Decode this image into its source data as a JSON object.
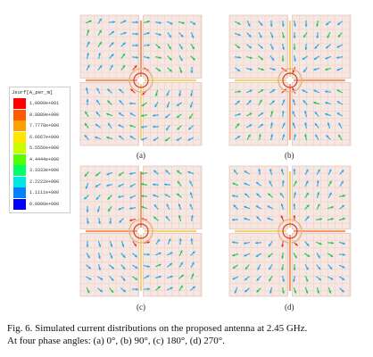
{
  "legend": {
    "title": "Jsurf[A_per_m]",
    "entries": [
      {
        "label": "1.0000e+001",
        "color": "#ff0000"
      },
      {
        "label": "8.8889e+000",
        "color": "#ff5a00"
      },
      {
        "label": "7.7778e+000",
        "color": "#ffa000"
      },
      {
        "label": "6.6667e+000",
        "color": "#ffe600"
      },
      {
        "label": "5.5556e+000",
        "color": "#c8ff00"
      },
      {
        "label": "4.4444e+000",
        "color": "#50ff00"
      },
      {
        "label": "3.3333e+000",
        "color": "#00ff64"
      },
      {
        "label": "2.2222e+000",
        "color": "#00e6e6"
      },
      {
        "label": "1.1111e+000",
        "color": "#0082ff"
      },
      {
        "label": "0.0000e+000",
        "color": "#0000ff"
      }
    ]
  },
  "panels": [
    {
      "label": "(a)",
      "phase": 0
    },
    {
      "label": "(b)",
      "phase": 90
    },
    {
      "label": "(c)",
      "phase": 180
    },
    {
      "label": "(d)",
      "phase": 270
    }
  ],
  "caption": {
    "line1": "Fig. 6.   Simulated current distributions on the proposed antenna at 2.45 GHz.",
    "line2": "At four phase angles: (a) 0°, (b) 90°, (c) 180°, (d) 270°."
  },
  "colors": {
    "patch_fill": "#f6e7e2",
    "grid": "#efc9c0",
    "ring": "#e8b88a",
    "arrow_low": "#2aa7e8",
    "arrow_mid": "#22c45a",
    "arrow_high": "#e83020"
  }
}
